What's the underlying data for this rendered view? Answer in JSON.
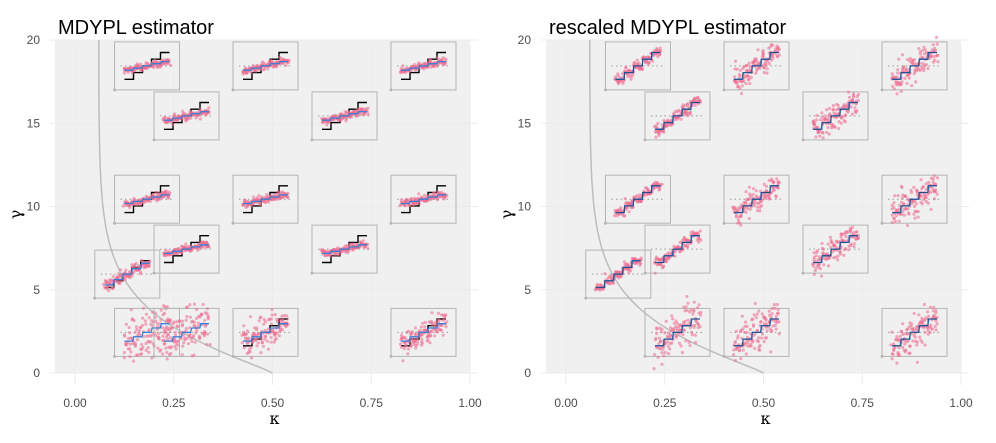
{
  "chart_data": [
    {
      "type": "scatter",
      "title": "MDYPL estimator",
      "xlabel": "κ",
      "ylabel": "γ",
      "xlim": [
        0,
        1
      ],
      "ylim": [
        0,
        20
      ],
      "x_ticks": [
        "0.00",
        "0.25",
        "0.50",
        "0.75",
        "1.00"
      ],
      "y_ticks": [
        "0",
        "5",
        "10",
        "15",
        "20"
      ],
      "shaded_region": {
        "kappa_min": 0,
        "kappa_max": 1,
        "gamma_min": 0,
        "gamma_max": 20
      },
      "boundary_curve": {
        "kappa_at_gamma_0": 0.5,
        "kappa_at_gamma_20": 0.06
      },
      "insets": [
        {
          "kappa": 0.1,
          "gamma": 1,
          "truth_shown": false,
          "spread": 0.2
        },
        {
          "kappa": 0.2,
          "gamma": 1,
          "truth_shown": false,
          "spread": 0.2
        },
        {
          "kappa": 0.4,
          "gamma": 1,
          "truth_shown": true,
          "spread": 0.12
        },
        {
          "kappa": 0.8,
          "gamma": 1,
          "truth_shown": true,
          "spread": 0.1
        },
        {
          "kappa": 0.05,
          "gamma": 4.5,
          "truth_shown": true,
          "spread": 0.04
        },
        {
          "kappa": 0.2,
          "gamma": 6,
          "truth_shown": true,
          "spread": 0.03
        },
        {
          "kappa": 0.6,
          "gamma": 6,
          "truth_shown": true,
          "spread": 0.03
        },
        {
          "kappa": 0.1,
          "gamma": 9,
          "truth_shown": true,
          "spread": 0.03
        },
        {
          "kappa": 0.4,
          "gamma": 9,
          "truth_shown": true,
          "spread": 0.03
        },
        {
          "kappa": 0.8,
          "gamma": 9,
          "truth_shown": true,
          "spread": 0.03
        },
        {
          "kappa": 0.2,
          "gamma": 14,
          "truth_shown": true,
          "spread": 0.03
        },
        {
          "kappa": 0.6,
          "gamma": 14,
          "truth_shown": true,
          "spread": 0.03
        },
        {
          "kappa": 0.1,
          "gamma": 17,
          "truth_shown": true,
          "spread": 0.03
        },
        {
          "kappa": 0.4,
          "gamma": 17,
          "truth_shown": true,
          "spread": 0.03
        },
        {
          "kappa": 0.8,
          "gamma": 17,
          "truth_shown": true,
          "spread": 0.03
        }
      ]
    },
    {
      "type": "scatter",
      "title": "rescaled MDYPL estimator",
      "xlabel": "κ",
      "ylabel": "γ",
      "xlim": [
        0,
        1
      ],
      "ylim": [
        0,
        20
      ],
      "x_ticks": [
        "0.00",
        "0.25",
        "0.50",
        "0.75",
        "1.00"
      ],
      "y_ticks": [
        "0",
        "5",
        "10",
        "15",
        "20"
      ],
      "shaded_region": {
        "kappa_min": 0,
        "kappa_max": 1,
        "gamma_min": 0,
        "gamma_max": 20
      },
      "boundary_curve": {
        "kappa_at_gamma_0": 0.5,
        "kappa_at_gamma_20": 0.06
      },
      "insets": [
        {
          "kappa": 0.2,
          "gamma": 1,
          "truth_shown": true,
          "spread": 0.18
        },
        {
          "kappa": 0.4,
          "gamma": 1,
          "truth_shown": true,
          "spread": 0.16
        },
        {
          "kappa": 0.8,
          "gamma": 1,
          "truth_shown": true,
          "spread": 0.14
        },
        {
          "kappa": 0.05,
          "gamma": 4.5,
          "truth_shown": true,
          "spread": 0.04
        },
        {
          "kappa": 0.2,
          "gamma": 6,
          "truth_shown": true,
          "spread": 0.05
        },
        {
          "kappa": 0.6,
          "gamma": 6,
          "truth_shown": true,
          "spread": 0.1
        },
        {
          "kappa": 0.1,
          "gamma": 9,
          "truth_shown": true,
          "spread": 0.04
        },
        {
          "kappa": 0.4,
          "gamma": 9,
          "truth_shown": true,
          "spread": 0.1
        },
        {
          "kappa": 0.8,
          "gamma": 9,
          "truth_shown": true,
          "spread": 0.12
        },
        {
          "kappa": 0.2,
          "gamma": 14,
          "truth_shown": true,
          "spread": 0.05
        },
        {
          "kappa": 0.6,
          "gamma": 14,
          "truth_shown": true,
          "spread": 0.1
        },
        {
          "kappa": 0.1,
          "gamma": 17,
          "truth_shown": true,
          "spread": 0.04
        },
        {
          "kappa": 0.4,
          "gamma": 17,
          "truth_shown": true,
          "spread": 0.1
        },
        {
          "kappa": 0.8,
          "gamma": 17,
          "truth_shown": true,
          "spread": 0.12
        }
      ]
    }
  ],
  "colors": {
    "panel_bg": "#ffffff",
    "shaded": "#f0f0f0",
    "grid": "#ebebeb",
    "boundary": "#bdbdbd",
    "inset_border": "#b5b5b5",
    "points": "#ec6b8e",
    "estimate_line": "#3a7fd8",
    "truth_line": "#000000",
    "tick_text": "#4d4d4d"
  }
}
